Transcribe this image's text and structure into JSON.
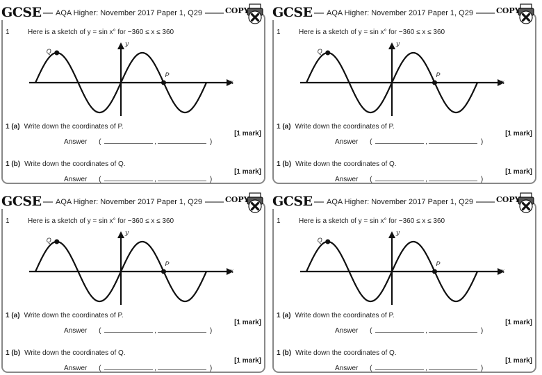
{
  "header": {
    "brand": "GCSE",
    "paper": "AQA Higher: November 2017 Paper 1, Q29",
    "copy_label": "COPY",
    "copy_icon": "printer-cross-icon"
  },
  "question": {
    "number": "1",
    "text": "Here is a sketch of y = sin x° for −360 ≤ x ≤ 360"
  },
  "graph": {
    "x_label": "x",
    "y_label": "y",
    "point_p": "P",
    "point_q": "Q"
  },
  "parts": [
    {
      "id": "1 (a)",
      "text": "Write down the coordinates of P.",
      "marks": "[1 mark]",
      "answer_label": "Answer",
      "open_paren": "(",
      "comma": ",",
      "close_paren": ")"
    },
    {
      "id": "1 (b)",
      "text": "Write down the coordinates of Q.",
      "marks": "[1 mark]",
      "answer_label": "Answer",
      "open_paren": "(",
      "comma": ",",
      "close_paren": ")"
    }
  ]
}
